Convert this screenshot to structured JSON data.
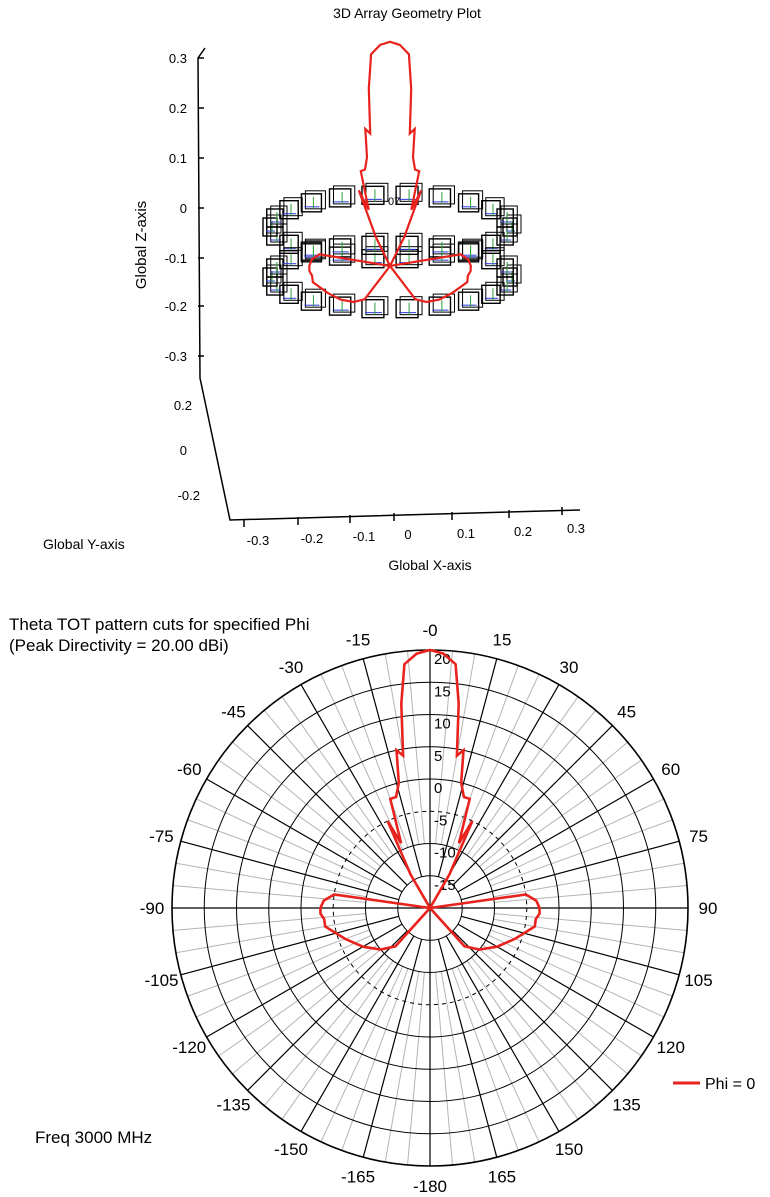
{
  "colors": {
    "pattern": "#e8231e",
    "axes": "#000000",
    "grid_minor": "#b4b4b4",
    "grid_major": "#000000",
    "radial_label": "#5a2a9a",
    "title3d": "#3a2a7a"
  },
  "geometry_plot": {
    "title": "3D Array Geometry Plot",
    "z_axis_label": "Global Z-axis",
    "y_axis_label": "Global Y-axis",
    "x_axis_label": "Global X-axis",
    "z_ticks": [
      "0.3",
      "0.2",
      "0.1",
      "0",
      "-0.1",
      "-0.2",
      "-0.3"
    ],
    "y_ticks": [
      "0.2",
      "0",
      "-0.2"
    ],
    "x_ticks": [
      "-0.3",
      "-0.2",
      "-0.1",
      "0",
      "0.1",
      "0.2",
      "0.3"
    ],
    "element_label": "07"
  },
  "chart_data": {
    "type": "polar",
    "title": "Theta TOT pattern cuts for specified Phi",
    "subtitle": "(Peak Directivity = 20.00 dBi)",
    "footnote": "Freq 3000 MHz",
    "angle_unit": "deg",
    "angle_ticks": [
      0,
      15,
      30,
      45,
      60,
      75,
      90,
      105,
      120,
      135,
      150,
      165,
      -180,
      -165,
      -150,
      -135,
      -120,
      -105,
      -90,
      -75,
      -60,
      -45,
      -30,
      -15
    ],
    "angle_tick_labels": [
      "-0",
      "15",
      "30",
      "45",
      "60",
      "75",
      "90",
      "105",
      "120",
      "135",
      "150",
      "165",
      "-180",
      "-165",
      "-150",
      "-135",
      "-120",
      "-105",
      "-90",
      "-75",
      "-60",
      "-45",
      "-30",
      "-15"
    ],
    "radial_ticks": [
      20,
      15,
      10,
      5,
      0,
      -5,
      -10,
      -15
    ],
    "radial_tick_labels": [
      "20",
      "15",
      "10",
      "5",
      "0",
      "-5",
      "-10",
      "-15"
    ],
    "r_range_dBi": [
      -20,
      20
    ],
    "legend": {
      "position": "right",
      "entries": [
        "Phi = 0"
      ]
    },
    "series": [
      {
        "name": "Phi = 0",
        "theta_deg": [
          0,
          3,
          6,
          8,
          10,
          12,
          14,
          17,
          20,
          24,
          26,
          30,
          35,
          45,
          60,
          75,
          82,
          86,
          90,
          93,
          96,
          100,
          110,
          120,
          130,
          138,
          145,
          150,
          160,
          170,
          180,
          -170,
          -160,
          -150,
          -145,
          -138,
          -130,
          -120,
          -110,
          -100,
          -96,
          -93,
          -90,
          -86,
          -82,
          -75,
          -60,
          -45,
          -35,
          -30,
          -26,
          -24,
          -20,
          -17,
          -14,
          -12,
          -10,
          -8,
          -6,
          -3,
          0
        ],
        "gain_dBi": [
          20,
          19.5,
          18,
          12,
          4,
          5,
          0,
          -2,
          -2,
          -9,
          -5,
          -14,
          -20,
          -20,
          -20,
          -20,
          -5,
          -3.5,
          -3,
          -3,
          -3.5,
          -3.5,
          -6,
          -8,
          -10,
          -12,
          -20,
          -20,
          -20,
          -20,
          -20,
          -20,
          -20,
          -20,
          -20,
          -12,
          -10,
          -8,
          -6,
          -3.5,
          -3.5,
          -3,
          -3,
          -3.5,
          -5,
          -20,
          -20,
          -20,
          -20,
          -14,
          -5,
          -9,
          -2,
          -2,
          0,
          5,
          4,
          12,
          18,
          19.5,
          20
        ]
      }
    ]
  }
}
